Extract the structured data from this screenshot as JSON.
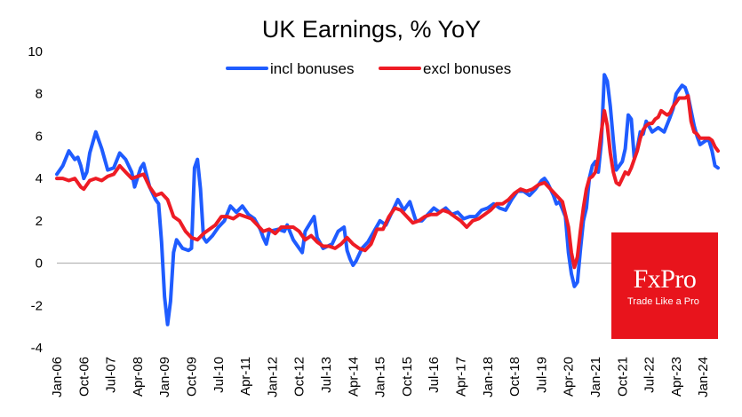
{
  "chart_data": {
    "type": "line",
    "title": "UK Earnings, % YoY",
    "xlabel": "",
    "ylabel": "",
    "ylim": [
      -4,
      10
    ],
    "yticks": [
      -4,
      -2,
      0,
      2,
      4,
      6,
      8,
      10
    ],
    "x_start": "2006-01",
    "x_end": "2024-06",
    "x_ticks": [
      "Jan-06",
      "Oct-06",
      "Jul-07",
      "Apr-08",
      "Jan-09",
      "Oct-09",
      "Jul-10",
      "Apr-11",
      "Jan-12",
      "Oct-12",
      "Jul-13",
      "Apr-14",
      "Jan-15",
      "Oct-15",
      "Jul-16",
      "Apr-17",
      "Jan-18",
      "Oct-18",
      "Jul-19",
      "Apr-20",
      "Jan-21",
      "Oct-21",
      "Jul-22",
      "Apr-23",
      "Jan-24"
    ],
    "grid": false,
    "legend": "top-center",
    "series": [
      {
        "name": "incl bonuses",
        "color": "#1f5cff",
        "points": [
          [
            "2006-01",
            4.2
          ],
          [
            "2006-03",
            4.6
          ],
          [
            "2006-05",
            5.3
          ],
          [
            "2006-07",
            4.9
          ],
          [
            "2006-08",
            5.0
          ],
          [
            "2006-09",
            4.6
          ],
          [
            "2006-10",
            4.0
          ],
          [
            "2006-11",
            4.3
          ],
          [
            "2006-12",
            5.2
          ],
          [
            "2007-02",
            6.2
          ],
          [
            "2007-04",
            5.4
          ],
          [
            "2007-06",
            4.4
          ],
          [
            "2007-08",
            4.5
          ],
          [
            "2007-10",
            5.2
          ],
          [
            "2007-12",
            4.9
          ],
          [
            "2008-02",
            4.3
          ],
          [
            "2008-03",
            3.6
          ],
          [
            "2008-05",
            4.5
          ],
          [
            "2008-06",
            4.7
          ],
          [
            "2008-08",
            3.6
          ],
          [
            "2008-10",
            3.0
          ],
          [
            "2008-11",
            2.8
          ],
          [
            "2008-12",
            1.0
          ],
          [
            "2009-01",
            -1.6
          ],
          [
            "2009-02",
            -2.9
          ],
          [
            "2009-03",
            -1.8
          ],
          [
            "2009-04",
            0.5
          ],
          [
            "2009-05",
            1.1
          ],
          [
            "2009-07",
            0.7
          ],
          [
            "2009-09",
            0.6
          ],
          [
            "2009-10",
            0.7
          ],
          [
            "2009-11",
            4.5
          ],
          [
            "2009-12",
            4.9
          ],
          [
            "2010-01",
            3.5
          ],
          [
            "2010-02",
            1.2
          ],
          [
            "2010-03",
            1.0
          ],
          [
            "2010-05",
            1.3
          ],
          [
            "2010-07",
            1.7
          ],
          [
            "2010-09",
            2.0
          ],
          [
            "2010-11",
            2.7
          ],
          [
            "2011-01",
            2.4
          ],
          [
            "2011-03",
            2.7
          ],
          [
            "2011-05",
            2.3
          ],
          [
            "2011-07",
            2.1
          ],
          [
            "2011-09",
            1.6
          ],
          [
            "2011-10",
            1.2
          ],
          [
            "2011-11",
            0.9
          ],
          [
            "2011-12",
            1.5
          ],
          [
            "2012-03",
            1.6
          ],
          [
            "2012-05",
            1.5
          ],
          [
            "2012-06",
            1.8
          ],
          [
            "2012-08",
            1.1
          ],
          [
            "2012-10",
            0.7
          ],
          [
            "2012-11",
            0.5
          ],
          [
            "2012-12",
            1.5
          ],
          [
            "2013-03",
            2.2
          ],
          [
            "2013-04",
            1.2
          ],
          [
            "2013-06",
            0.7
          ],
          [
            "2013-09",
            0.9
          ],
          [
            "2013-11",
            1.5
          ],
          [
            "2014-01",
            1.7
          ],
          [
            "2014-02",
            0.6
          ],
          [
            "2014-03",
            0.2
          ],
          [
            "2014-04",
            -0.1
          ],
          [
            "2014-05",
            0.1
          ],
          [
            "2014-07",
            0.7
          ],
          [
            "2014-09",
            1.0
          ],
          [
            "2014-11",
            1.5
          ],
          [
            "2015-01",
            2.0
          ],
          [
            "2015-03",
            1.8
          ],
          [
            "2015-05",
            2.4
          ],
          [
            "2015-07",
            3.0
          ],
          [
            "2015-09",
            2.5
          ],
          [
            "2015-11",
            2.9
          ],
          [
            "2016-01",
            2.0
          ],
          [
            "2016-03",
            2.0
          ],
          [
            "2016-05",
            2.3
          ],
          [
            "2016-07",
            2.6
          ],
          [
            "2016-09",
            2.4
          ],
          [
            "2016-11",
            2.6
          ],
          [
            "2017-01",
            2.3
          ],
          [
            "2017-03",
            2.4
          ],
          [
            "2017-05",
            2.1
          ],
          [
            "2017-07",
            2.2
          ],
          [
            "2017-09",
            2.2
          ],
          [
            "2017-11",
            2.5
          ],
          [
            "2018-01",
            2.6
          ],
          [
            "2018-03",
            2.8
          ],
          [
            "2018-05",
            2.6
          ],
          [
            "2018-07",
            2.5
          ],
          [
            "2018-09",
            3.0
          ],
          [
            "2018-11",
            3.4
          ],
          [
            "2019-01",
            3.4
          ],
          [
            "2019-03",
            3.2
          ],
          [
            "2019-05",
            3.5
          ],
          [
            "2019-07",
            3.9
          ],
          [
            "2019-08",
            4.0
          ],
          [
            "2019-09",
            3.8
          ],
          [
            "2019-11",
            3.2
          ],
          [
            "2019-12",
            2.8
          ],
          [
            "2020-01",
            2.9
          ],
          [
            "2020-03",
            2.2
          ],
          [
            "2020-04",
            0.5
          ],
          [
            "2020-05",
            -0.5
          ],
          [
            "2020-06",
            -1.1
          ],
          [
            "2020-07",
            -0.9
          ],
          [
            "2020-08",
            0.6
          ],
          [
            "2020-09",
            2.0
          ],
          [
            "2020-10",
            2.6
          ],
          [
            "2020-11",
            4.0
          ],
          [
            "2020-12",
            4.6
          ],
          [
            "2021-01",
            4.8
          ],
          [
            "2021-02",
            4.3
          ],
          [
            "2021-03",
            5.7
          ],
          [
            "2021-04",
            8.9
          ],
          [
            "2021-05",
            8.6
          ],
          [
            "2021-06",
            7.4
          ],
          [
            "2021-07",
            5.8
          ],
          [
            "2021-08",
            4.4
          ],
          [
            "2021-09",
            4.6
          ],
          [
            "2021-10",
            4.8
          ],
          [
            "2021-11",
            5.4
          ],
          [
            "2021-12",
            7.0
          ],
          [
            "2022-01",
            6.8
          ],
          [
            "2022-02",
            5.0
          ],
          [
            "2022-03",
            5.4
          ],
          [
            "2022-04",
            6.2
          ],
          [
            "2022-05",
            6.1
          ],
          [
            "2022-06",
            6.7
          ],
          [
            "2022-08",
            6.2
          ],
          [
            "2022-10",
            6.4
          ],
          [
            "2022-12",
            6.2
          ],
          [
            "2023-02",
            6.9
          ],
          [
            "2023-03",
            7.3
          ],
          [
            "2023-04",
            8.0
          ],
          [
            "2023-05",
            8.2
          ],
          [
            "2023-06",
            8.4
          ],
          [
            "2023-07",
            8.3
          ],
          [
            "2023-08",
            7.9
          ],
          [
            "2023-09",
            7.2
          ],
          [
            "2023-10",
            6.5
          ],
          [
            "2023-11",
            6.0
          ],
          [
            "2023-12",
            5.6
          ],
          [
            "2024-01",
            5.7
          ],
          [
            "2024-02",
            5.8
          ],
          [
            "2024-03",
            5.8
          ],
          [
            "2024-04",
            5.3
          ],
          [
            "2024-05",
            4.6
          ],
          [
            "2024-06",
            4.5
          ]
        ]
      },
      {
        "name": "excl bonuses",
        "color": "#ee1c25",
        "points": [
          [
            "2006-01",
            4.0
          ],
          [
            "2006-03",
            4.0
          ],
          [
            "2006-05",
            3.9
          ],
          [
            "2006-07",
            4.0
          ],
          [
            "2006-09",
            3.6
          ],
          [
            "2006-10",
            3.5
          ],
          [
            "2006-12",
            3.9
          ],
          [
            "2007-02",
            4.0
          ],
          [
            "2007-04",
            3.9
          ],
          [
            "2007-06",
            4.1
          ],
          [
            "2007-08",
            4.2
          ],
          [
            "2007-10",
            4.6
          ],
          [
            "2007-12",
            4.3
          ],
          [
            "2008-02",
            4.0
          ],
          [
            "2008-04",
            4.1
          ],
          [
            "2008-06",
            4.2
          ],
          [
            "2008-08",
            3.6
          ],
          [
            "2008-10",
            3.2
          ],
          [
            "2008-12",
            3.3
          ],
          [
            "2009-02",
            3.0
          ],
          [
            "2009-04",
            2.2
          ],
          [
            "2009-06",
            2.0
          ],
          [
            "2009-08",
            1.5
          ],
          [
            "2009-10",
            1.2
          ],
          [
            "2009-12",
            1.1
          ],
          [
            "2010-02",
            1.4
          ],
          [
            "2010-04",
            1.6
          ],
          [
            "2010-06",
            1.8
          ],
          [
            "2010-08",
            2.2
          ],
          [
            "2010-10",
            2.2
          ],
          [
            "2010-12",
            2.1
          ],
          [
            "2011-02",
            2.3
          ],
          [
            "2011-04",
            2.2
          ],
          [
            "2011-06",
            2.1
          ],
          [
            "2011-08",
            1.8
          ],
          [
            "2011-10",
            1.5
          ],
          [
            "2011-12",
            1.6
          ],
          [
            "2012-02",
            1.4
          ],
          [
            "2012-04",
            1.7
          ],
          [
            "2012-06",
            1.7
          ],
          [
            "2012-08",
            1.7
          ],
          [
            "2012-10",
            1.5
          ],
          [
            "2012-12",
            1.1
          ],
          [
            "2013-02",
            1.3
          ],
          [
            "2013-04",
            1.0
          ],
          [
            "2013-06",
            0.8
          ],
          [
            "2013-08",
            0.8
          ],
          [
            "2013-10",
            0.7
          ],
          [
            "2013-12",
            0.9
          ],
          [
            "2014-02",
            1.2
          ],
          [
            "2014-04",
            0.9
          ],
          [
            "2014-06",
            0.7
          ],
          [
            "2014-08",
            0.6
          ],
          [
            "2014-10",
            0.9
          ],
          [
            "2014-12",
            1.6
          ],
          [
            "2015-02",
            1.6
          ],
          [
            "2015-04",
            2.2
          ],
          [
            "2015-06",
            2.6
          ],
          [
            "2015-08",
            2.5
          ],
          [
            "2015-10",
            2.2
          ],
          [
            "2015-12",
            1.9
          ],
          [
            "2016-02",
            2.0
          ],
          [
            "2016-04",
            2.2
          ],
          [
            "2016-06",
            2.3
          ],
          [
            "2016-08",
            2.3
          ],
          [
            "2016-10",
            2.5
          ],
          [
            "2016-12",
            2.4
          ],
          [
            "2017-02",
            2.2
          ],
          [
            "2017-04",
            2.0
          ],
          [
            "2017-06",
            1.7
          ],
          [
            "2017-08",
            2.0
          ],
          [
            "2017-10",
            2.1
          ],
          [
            "2017-12",
            2.3
          ],
          [
            "2018-02",
            2.5
          ],
          [
            "2018-04",
            2.8
          ],
          [
            "2018-06",
            2.8
          ],
          [
            "2018-08",
            3.0
          ],
          [
            "2018-10",
            3.3
          ],
          [
            "2018-12",
            3.5
          ],
          [
            "2019-02",
            3.4
          ],
          [
            "2019-04",
            3.5
          ],
          [
            "2019-06",
            3.7
          ],
          [
            "2019-08",
            3.8
          ],
          [
            "2019-10",
            3.5
          ],
          [
            "2019-12",
            3.2
          ],
          [
            "2020-02",
            2.9
          ],
          [
            "2020-04",
            1.7
          ],
          [
            "2020-05",
            0.5
          ],
          [
            "2020-06",
            -0.2
          ],
          [
            "2020-07",
            0.3
          ],
          [
            "2020-08",
            1.5
          ],
          [
            "2020-09",
            2.6
          ],
          [
            "2020-10",
            3.5
          ],
          [
            "2020-11",
            4.0
          ],
          [
            "2020-12",
            4.1
          ],
          [
            "2021-01",
            4.3
          ],
          [
            "2021-02",
            5.0
          ],
          [
            "2021-03",
            6.2
          ],
          [
            "2021-04",
            7.2
          ],
          [
            "2021-05",
            6.5
          ],
          [
            "2021-06",
            5.2
          ],
          [
            "2021-07",
            4.3
          ],
          [
            "2021-08",
            3.8
          ],
          [
            "2021-09",
            3.7
          ],
          [
            "2021-10",
            4.0
          ],
          [
            "2021-11",
            4.3
          ],
          [
            "2021-12",
            4.2
          ],
          [
            "2022-01",
            4.5
          ],
          [
            "2022-02",
            4.9
          ],
          [
            "2022-03",
            5.3
          ],
          [
            "2022-04",
            5.9
          ],
          [
            "2022-05",
            6.3
          ],
          [
            "2022-06",
            6.5
          ],
          [
            "2022-07",
            6.6
          ],
          [
            "2022-08",
            6.6
          ],
          [
            "2022-09",
            6.8
          ],
          [
            "2022-10",
            6.9
          ],
          [
            "2022-11",
            7.2
          ],
          [
            "2022-12",
            7.1
          ],
          [
            "2023-01",
            7.0
          ],
          [
            "2023-02",
            7.1
          ],
          [
            "2023-03",
            7.4
          ],
          [
            "2023-04",
            7.6
          ],
          [
            "2023-05",
            7.8
          ],
          [
            "2023-06",
            7.8
          ],
          [
            "2023-07",
            7.8
          ],
          [
            "2023-08",
            7.9
          ],
          [
            "2023-09",
            6.7
          ],
          [
            "2023-10",
            6.2
          ],
          [
            "2023-11",
            6.1
          ],
          [
            "2023-12",
            5.9
          ],
          [
            "2024-01",
            5.9
          ],
          [
            "2024-02",
            5.9
          ],
          [
            "2024-03",
            5.9
          ],
          [
            "2024-04",
            5.8
          ],
          [
            "2024-05",
            5.5
          ],
          [
            "2024-06",
            5.3
          ]
        ]
      }
    ]
  },
  "logo": {
    "brand": "FxPro",
    "tagline": "Trade Like a Pro",
    "color": "#e8141c"
  }
}
